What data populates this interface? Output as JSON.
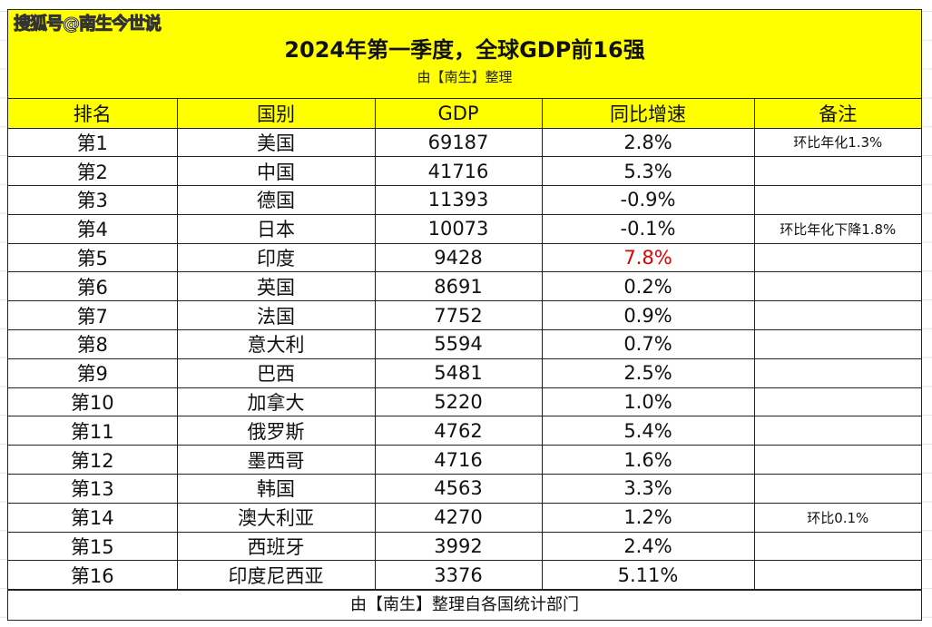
{
  "watermark": "搜狐号@南生今世说",
  "title": "2024年第一季度，全球GDP前16强",
  "subtitle": "由【南生】整理",
  "headers": [
    "排名",
    "国别",
    "GDP",
    "同比增速",
    "备注"
  ],
  "highlight_color": "#ffff00",
  "accent_red": "#e00000",
  "rows": [
    {
      "rank": "第1",
      "country": "美国",
      "gdp": "69187",
      "growth": "2.8%",
      "note": "环比年化1.3%"
    },
    {
      "rank": "第2",
      "country": "中国",
      "gdp": "41716",
      "growth": "5.3%",
      "note": ""
    },
    {
      "rank": "第3",
      "country": "德国",
      "gdp": "11393",
      "growth": "-0.9%",
      "note": ""
    },
    {
      "rank": "第4",
      "country": "日本",
      "gdp": "10073",
      "growth": "-0.1%",
      "note": "环比年化下降1.8%"
    },
    {
      "rank": "第5",
      "country": "印度",
      "gdp": "9428",
      "growth": "7.8%",
      "note": "",
      "highlight": true
    },
    {
      "rank": "第6",
      "country": "英国",
      "gdp": "8691",
      "growth": "0.2%",
      "note": ""
    },
    {
      "rank": "第7",
      "country": "法国",
      "gdp": "7752",
      "growth": "0.9%",
      "note": ""
    },
    {
      "rank": "第8",
      "country": "意大利",
      "gdp": "5594",
      "growth": "0.7%",
      "note": ""
    },
    {
      "rank": "第9",
      "country": "巴西",
      "gdp": "5481",
      "growth": "2.5%",
      "note": ""
    },
    {
      "rank": "第10",
      "country": "加拿大",
      "gdp": "5220",
      "growth": "1.0%",
      "note": ""
    },
    {
      "rank": "第11",
      "country": "俄罗斯",
      "gdp": "4762",
      "growth": "5.4%",
      "note": ""
    },
    {
      "rank": "第12",
      "country": "墨西哥",
      "gdp": "4716",
      "growth": "1.6%",
      "note": ""
    },
    {
      "rank": "第13",
      "country": "韩国",
      "gdp": "4563",
      "growth": "3.3%",
      "note": ""
    },
    {
      "rank": "第14",
      "country": "澳大利亚",
      "gdp": "4270",
      "growth": "1.2%",
      "note": "环比0.1%"
    },
    {
      "rank": "第15",
      "country": "西班牙",
      "gdp": "3992",
      "growth": "2.4%",
      "note": ""
    },
    {
      "rank": "第16",
      "country": "印度尼西亚",
      "gdp": "3376",
      "growth": "5.11%",
      "note": ""
    }
  ],
  "footer": "由【南生】整理自各国统计部门"
}
